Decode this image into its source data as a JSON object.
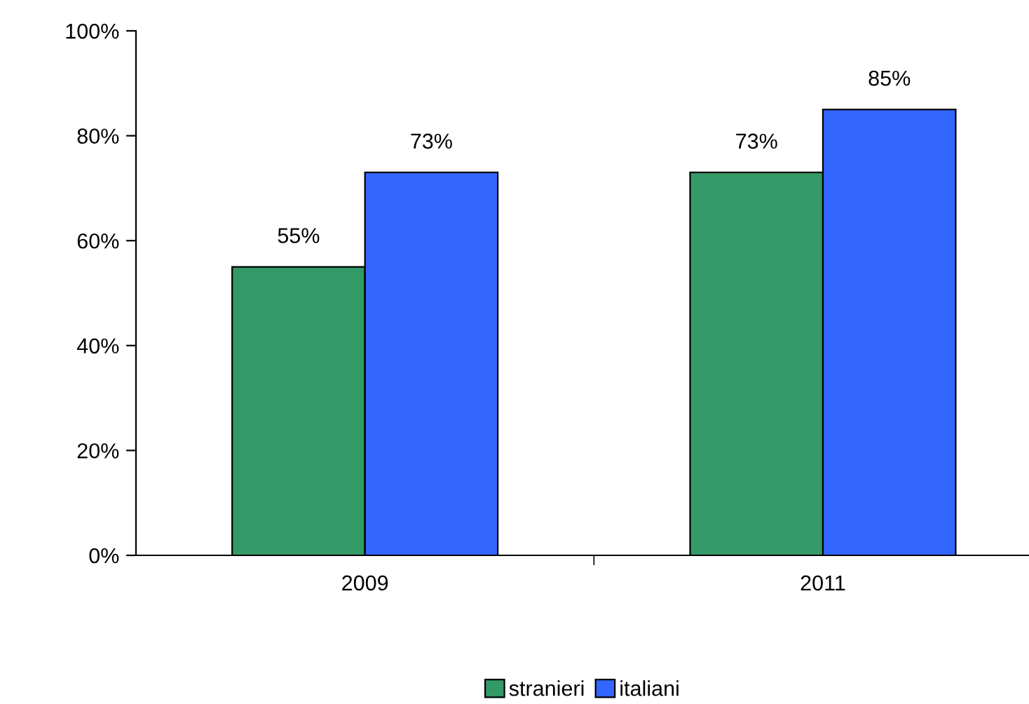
{
  "chart_data": {
    "type": "bar",
    "categories": [
      "2009",
      "2011"
    ],
    "series": [
      {
        "name": "stranieri",
        "color": "#339966",
        "values": [
          55,
          73
        ],
        "value_labels": [
          "55%",
          "73%"
        ]
      },
      {
        "name": "italiani",
        "color": "#3366ff",
        "values": [
          73,
          85
        ],
        "value_labels": [
          "73%",
          "85%"
        ]
      }
    ],
    "ylim": [
      0,
      100
    ],
    "yticks": [
      {
        "value": 0,
        "label": "0%"
      },
      {
        "value": 20,
        "label": "20%"
      },
      {
        "value": 40,
        "label": "40%"
      },
      {
        "value": 60,
        "label": "60%"
      },
      {
        "value": 80,
        "label": "80%"
      },
      {
        "value": 100,
        "label": "100%"
      }
    ],
    "grid": false,
    "legend": "bottom"
  }
}
